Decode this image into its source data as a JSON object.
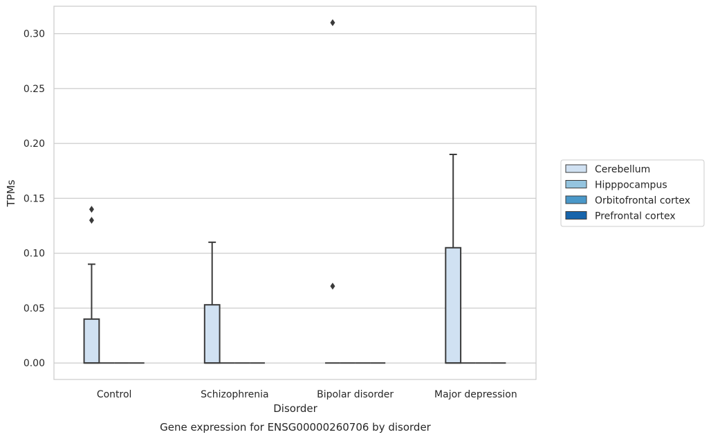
{
  "chart_data": {
    "type": "box",
    "title": "",
    "caption": "Gene expression for ENSG00000260706 by disorder",
    "xlabel": "Disorder",
    "ylabel": "TPMs",
    "ylim": [
      -0.015,
      0.325
    ],
    "yticks": [
      0.0,
      0.05,
      0.1,
      0.15,
      0.2,
      0.25,
      0.3
    ],
    "ytick_labels": [
      "0.00",
      "0.05",
      "0.10",
      "0.15",
      "0.20",
      "0.25",
      "0.30"
    ],
    "grid": "horizontal",
    "legend_position": "right",
    "categories": [
      "Control",
      "Schizophrenia",
      "Bipolar disorder",
      "Major depression"
    ],
    "series": [
      {
        "name": "Cerebellum",
        "color": "#d0e1f2",
        "boxes": [
          {
            "q1": 0.0,
            "median": 0.0,
            "q3": 0.04,
            "whisker_low": 0.0,
            "whisker_high": 0.09,
            "outliers": [
              0.13,
              0.14
            ]
          },
          {
            "q1": 0.0,
            "median": 0.0,
            "q3": 0.053,
            "whisker_low": 0.0,
            "whisker_high": 0.11,
            "outliers": []
          },
          {
            "q1": 0.0,
            "median": 0.0,
            "q3": 0.0,
            "whisker_low": 0.0,
            "whisker_high": 0.0,
            "outliers": [
              0.07,
              0.31
            ]
          },
          {
            "q1": 0.0,
            "median": 0.0,
            "q3": 0.105,
            "whisker_low": 0.0,
            "whisker_high": 0.19,
            "outliers": []
          }
        ]
      },
      {
        "name": "Hipppocampus",
        "color": "#94c4df",
        "boxes": [
          {
            "q1": 0.0,
            "median": 0.0,
            "q3": 0.0,
            "whisker_low": 0.0,
            "whisker_high": 0.0,
            "outliers": []
          },
          {
            "q1": 0.0,
            "median": 0.0,
            "q3": 0.0,
            "whisker_low": 0.0,
            "whisker_high": 0.0,
            "outliers": []
          },
          {
            "q1": 0.0,
            "median": 0.0,
            "q3": 0.0,
            "whisker_low": 0.0,
            "whisker_high": 0.0,
            "outliers": []
          },
          {
            "q1": 0.0,
            "median": 0.0,
            "q3": 0.0,
            "whisker_low": 0.0,
            "whisker_high": 0.0,
            "outliers": []
          }
        ]
      },
      {
        "name": "Orbitofrontal cortex",
        "color": "#4a98c9",
        "boxes": [
          {
            "q1": 0.0,
            "median": 0.0,
            "q3": 0.0,
            "whisker_low": 0.0,
            "whisker_high": 0.0,
            "outliers": []
          },
          {
            "q1": 0.0,
            "median": 0.0,
            "q3": 0.0,
            "whisker_low": 0.0,
            "whisker_high": 0.0,
            "outliers": []
          },
          {
            "q1": 0.0,
            "median": 0.0,
            "q3": 0.0,
            "whisker_low": 0.0,
            "whisker_high": 0.0,
            "outliers": []
          },
          {
            "q1": 0.0,
            "median": 0.0,
            "q3": 0.0,
            "whisker_low": 0.0,
            "whisker_high": 0.0,
            "outliers": []
          }
        ]
      },
      {
        "name": "Prefrontal cortex",
        "color": "#1764ab",
        "boxes": [
          {
            "q1": 0.0,
            "median": 0.0,
            "q3": 0.0,
            "whisker_low": 0.0,
            "whisker_high": 0.0,
            "outliers": []
          },
          {
            "q1": 0.0,
            "median": 0.0,
            "q3": 0.0,
            "whisker_low": 0.0,
            "whisker_high": 0.0,
            "outliers": []
          },
          {
            "q1": 0.0,
            "median": 0.0,
            "q3": 0.0,
            "whisker_low": 0.0,
            "whisker_high": 0.0,
            "outliers": []
          },
          {
            "q1": 0.0,
            "median": 0.0,
            "q3": 0.0,
            "whisker_low": 0.0,
            "whisker_high": 0.0,
            "outliers": []
          }
        ]
      }
    ]
  }
}
